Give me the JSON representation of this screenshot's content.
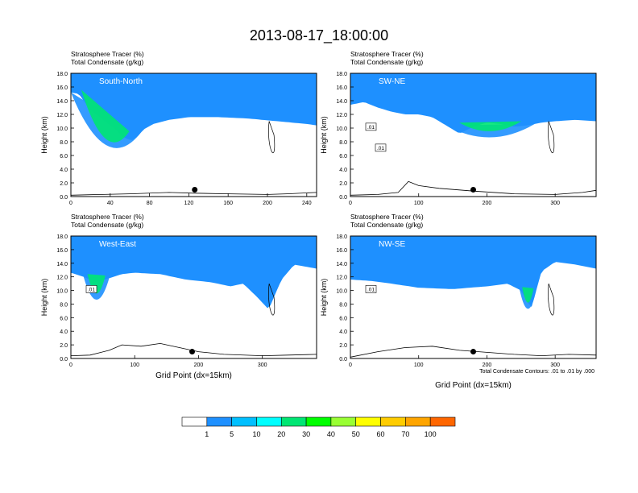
{
  "title": "2013-08-17_18:00:00",
  "chart_data": [
    {
      "type": "heatmap",
      "panel_label": "South-North",
      "left_title_1": "Stratosphere Tracer   (%)",
      "left_title_2": "Total Condensate   (g/kg)",
      "xlabel": "",
      "ylabel": "Height (km)",
      "xlim": [
        0,
        250
      ],
      "xticks": [
        0,
        40,
        80,
        120,
        160,
        200,
        240
      ],
      "ylim": [
        0,
        18
      ],
      "yticks": [
        "0.0",
        "2.0",
        "4.0",
        "6.0",
        "8.0",
        "10.0",
        "12.0",
        "14.0",
        "16.0",
        "18.0"
      ],
      "tropopause_base_km": [
        [
          0,
          15.2
        ],
        [
          8,
          15.0
        ],
        [
          12,
          14.2
        ],
        [
          20,
          12.6
        ],
        [
          28,
          11.8
        ],
        [
          36,
          10.8
        ],
        [
          44,
          10.0
        ],
        [
          54,
          8.6
        ],
        [
          62,
          8.2
        ],
        [
          68,
          8.8
        ],
        [
          74,
          9.8
        ],
        [
          84,
          10.6
        ],
        [
          100,
          11.2
        ],
        [
          120,
          11.6
        ],
        [
          150,
          11.6
        ],
        [
          180,
          11.4
        ],
        [
          210,
          11.0
        ],
        [
          240,
          10.6
        ],
        [
          250,
          10.4
        ]
      ],
      "gradient_width_km": 2.6,
      "dip": {
        "x": [
          0,
          70
        ],
        "floor_km": 4.4
      },
      "terrain_km": [
        [
          0,
          0.2
        ],
        [
          30,
          0.3
        ],
        [
          60,
          0.4
        ],
        [
          100,
          0.6
        ],
        [
          125,
          0.5
        ],
        [
          160,
          0.4
        ],
        [
          200,
          0.3
        ],
        [
          220,
          0.4
        ],
        [
          250,
          0.6
        ]
      ],
      "marker_x": 126,
      "contour_labels": []
    },
    {
      "type": "heatmap",
      "panel_label": "SW-NE",
      "left_title_1": "Stratosphere Tracer   (%)",
      "left_title_2": "Total Condensate   (g/kg)",
      "xlabel": "",
      "ylabel": "Height (km)",
      "xlim": [
        0,
        360
      ],
      "xticks": [
        0,
        100,
        200,
        300
      ],
      "ylim": [
        0,
        18
      ],
      "yticks": [
        "0.0",
        "2.0",
        "4.0",
        "6.0",
        "8.0",
        "10.0",
        "12.0",
        "14.0",
        "16.0",
        "18.0"
      ],
      "tropopause_base_km": [
        [
          0,
          13.4
        ],
        [
          20,
          13.8
        ],
        [
          40,
          13.0
        ],
        [
          60,
          12.4
        ],
        [
          80,
          12.0
        ],
        [
          100,
          12.0
        ],
        [
          120,
          11.6
        ],
        [
          140,
          10.4
        ],
        [
          160,
          9.2
        ],
        [
          180,
          10.2
        ],
        [
          200,
          10.8
        ],
        [
          220,
          10.6
        ],
        [
          240,
          10.2
        ],
        [
          260,
          10.4
        ],
        [
          280,
          10.8
        ],
        [
          300,
          11.0
        ],
        [
          330,
          11.2
        ],
        [
          360,
          11.0
        ]
      ],
      "gradient_width_km": 2.4,
      "dip": {
        "x": [
          140,
          270
        ],
        "floor_km": 8.2
      },
      "terrain_km": [
        [
          0,
          0.2
        ],
        [
          40,
          0.3
        ],
        [
          70,
          0.6
        ],
        [
          85,
          2.2
        ],
        [
          100,
          1.6
        ],
        [
          130,
          1.2
        ],
        [
          180,
          0.8
        ],
        [
          240,
          0.4
        ],
        [
          300,
          0.3
        ],
        [
          340,
          0.6
        ],
        [
          360,
          0.9
        ]
      ],
      "marker_x": 180,
      "contour_labels": [
        ".01",
        ".01"
      ]
    },
    {
      "type": "heatmap",
      "panel_label": "West-East",
      "left_title_1": "Stratosphere Tracer   (%)",
      "left_title_2": "Total Condensate   (g/kg)",
      "xlabel": "Grid Point (dx=15km)",
      "ylabel": "Height (km)",
      "xlim": [
        0,
        385
      ],
      "xticks": [
        0,
        100,
        200,
        300
      ],
      "ylim": [
        0,
        18
      ],
      "yticks": [
        "0.0",
        "2.0",
        "4.0",
        "6.0",
        "8.0",
        "10.0",
        "12.0",
        "14.0",
        "16.0",
        "18.0"
      ],
      "tropopause_base_km": [
        [
          0,
          12.6
        ],
        [
          20,
          12.0
        ],
        [
          40,
          11.2
        ],
        [
          60,
          11.8
        ],
        [
          80,
          12.4
        ],
        [
          100,
          12.6
        ],
        [
          140,
          12.4
        ],
        [
          180,
          11.6
        ],
        [
          220,
          11.2
        ],
        [
          250,
          10.6
        ],
        [
          270,
          11.0
        ],
        [
          290,
          9.2
        ],
        [
          310,
          7.2
        ],
        [
          330,
          11.6
        ],
        [
          350,
          13.8
        ],
        [
          385,
          13.2
        ]
      ],
      "gradient_width_km": 2.4,
      "dip": {
        "x": [
          20,
          60
        ],
        "floor_km": 6.8
      },
      "terrain_km": [
        [
          0,
          0.4
        ],
        [
          30,
          0.5
        ],
        [
          60,
          1.2
        ],
        [
          80,
          2.0
        ],
        [
          110,
          1.8
        ],
        [
          140,
          2.2
        ],
        [
          170,
          1.6
        ],
        [
          200,
          1.0
        ],
        [
          240,
          0.6
        ],
        [
          300,
          0.4
        ],
        [
          340,
          0.5
        ],
        [
          385,
          0.6
        ]
      ],
      "marker_x": 190,
      "contour_labels": [
        ".01"
      ]
    },
    {
      "type": "heatmap",
      "panel_label": "NW-SE",
      "left_title_1": "Stratosphere Tracer   (%)",
      "left_title_2": "Total Condensate   (g/kg)",
      "xlabel": "Grid Point (dx=15km)",
      "ylabel": "Height (km)",
      "xlim": [
        0,
        360
      ],
      "xticks": [
        0,
        100,
        200,
        300
      ],
      "ylim": [
        0,
        18
      ],
      "yticks": [
        "0.0",
        "2.0",
        "4.0",
        "6.0",
        "8.0",
        "10.0",
        "12.0",
        "14.0",
        "16.0",
        "18.0"
      ],
      "tropopause_base_km": [
        [
          0,
          11.6
        ],
        [
          30,
          11.4
        ],
        [
          60,
          11.0
        ],
        [
          100,
          10.4
        ],
        [
          150,
          10.2
        ],
        [
          200,
          10.6
        ],
        [
          230,
          11.0
        ],
        [
          250,
          10.0
        ],
        [
          265,
          7.4
        ],
        [
          280,
          12.8
        ],
        [
          300,
          14.2
        ],
        [
          330,
          13.8
        ],
        [
          360,
          13.2
        ]
      ],
      "gradient_width_km": 2.4,
      "dip": {
        "x": [
          248,
          272
        ],
        "floor_km": 6.0
      },
      "terrain_km": [
        [
          0,
          0.2
        ],
        [
          40,
          1.0
        ],
        [
          80,
          1.6
        ],
        [
          120,
          1.8
        ],
        [
          160,
          1.2
        ],
        [
          200,
          0.9
        ],
        [
          240,
          0.6
        ],
        [
          280,
          0.4
        ],
        [
          320,
          0.6
        ],
        [
          360,
          0.5
        ]
      ],
      "marker_x": 180,
      "contour_labels": [
        ".01"
      ]
    }
  ],
  "contour_note": "Total Condensate Contours: .01 to .01 by .000",
  "colorbar": {
    "labels": [
      "1",
      "5",
      "10",
      "20",
      "30",
      "40",
      "50",
      "60",
      "70",
      "100"
    ],
    "colors": [
      "#ffffff",
      "#1e90ff",
      "#00bfff",
      "#00ffff",
      "#00e673",
      "#00ff00",
      "#99ff33",
      "#ffff00",
      "#ffcc00",
      "#ffa500",
      "#ff6600",
      "#ff0000"
    ]
  }
}
